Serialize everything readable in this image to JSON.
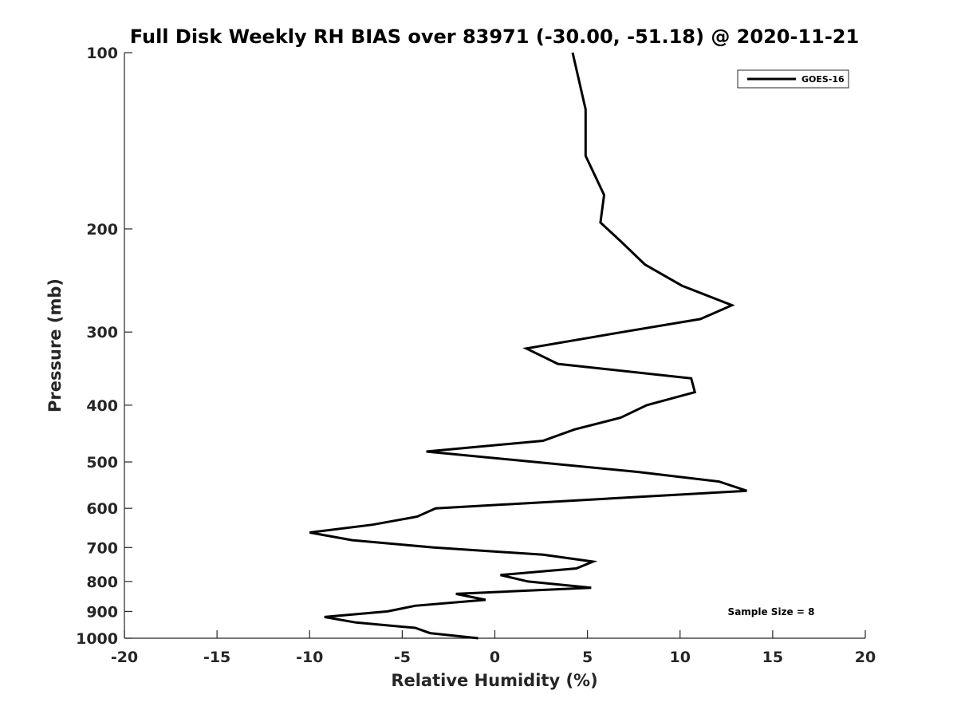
{
  "chart_data": {
    "type": "line",
    "title": "Full Disk Weekly RH BIAS over 83971 (-30.00, -51.18) @ 2020-11-21",
    "xlabel": "Relative Humidity (%)",
    "ylabel": "Pressure (mb)",
    "xlim": [
      -20,
      20
    ],
    "ylim": [
      100,
      1000
    ],
    "y_scale": "log",
    "y_reversed": true,
    "x_ticks": [
      -20,
      -15,
      -10,
      -5,
      0,
      5,
      10,
      15,
      20
    ],
    "x_tick_labels": [
      "-20",
      "-15",
      "-10",
      "-5",
      "0",
      "5",
      "10",
      "15",
      "20"
    ],
    "y_ticks": [
      100,
      200,
      300,
      400,
      500,
      600,
      700,
      800,
      900,
      1000
    ],
    "y_tick_labels": [
      "100",
      "200",
      "300",
      "400",
      "500",
      "600",
      "700",
      "800",
      "900",
      "1000"
    ],
    "grid": false,
    "legend": "top-right",
    "annotation": "Sample Size = 8",
    "series": [
      {
        "name": "GOES-16",
        "color": "#000000",
        "points": [
          {
            "x": 4.2,
            "y": 100
          },
          {
            "x": 4.9,
            "y": 125
          },
          {
            "x": 4.9,
            "y": 150
          },
          {
            "x": 5.9,
            "y": 175
          },
          {
            "x": 5.7,
            "y": 195
          },
          {
            "x": 6.8,
            "y": 210
          },
          {
            "x": 8.1,
            "y": 230
          },
          {
            "x": 10.1,
            "y": 250
          },
          {
            "x": 12.8,
            "y": 270
          },
          {
            "x": 11.1,
            "y": 285
          },
          {
            "x": 6.9,
            "y": 300
          },
          {
            "x": 1.7,
            "y": 320
          },
          {
            "x": 3.4,
            "y": 340
          },
          {
            "x": 10.6,
            "y": 360
          },
          {
            "x": 10.8,
            "y": 380
          },
          {
            "x": 8.2,
            "y": 400
          },
          {
            "x": 6.8,
            "y": 420
          },
          {
            "x": 4.3,
            "y": 440
          },
          {
            "x": 2.6,
            "y": 460
          },
          {
            "x": -3.7,
            "y": 480
          },
          {
            "x": 7.7,
            "y": 520
          },
          {
            "x": 12.1,
            "y": 540
          },
          {
            "x": 13.6,
            "y": 560
          },
          {
            "x": -3.2,
            "y": 600
          },
          {
            "x": -4.2,
            "y": 620
          },
          {
            "x": -6.6,
            "y": 640
          },
          {
            "x": -10.0,
            "y": 660
          },
          {
            "x": -7.7,
            "y": 680
          },
          {
            "x": -3.3,
            "y": 700
          },
          {
            "x": 2.6,
            "y": 720
          },
          {
            "x": 5.3,
            "y": 740
          },
          {
            "x": 4.4,
            "y": 760
          },
          {
            "x": 0.3,
            "y": 780
          },
          {
            "x": 1.8,
            "y": 800
          },
          {
            "x": 5.2,
            "y": 820
          },
          {
            "x": -2.1,
            "y": 840
          },
          {
            "x": -0.5,
            "y": 860
          },
          {
            "x": -4.3,
            "y": 880
          },
          {
            "x": -5.8,
            "y": 900
          },
          {
            "x": -9.2,
            "y": 920
          },
          {
            "x": -7.5,
            "y": 940
          },
          {
            "x": -4.3,
            "y": 960
          },
          {
            "x": -3.5,
            "y": 980
          },
          {
            "x": -0.9,
            "y": 1000
          }
        ]
      }
    ]
  }
}
